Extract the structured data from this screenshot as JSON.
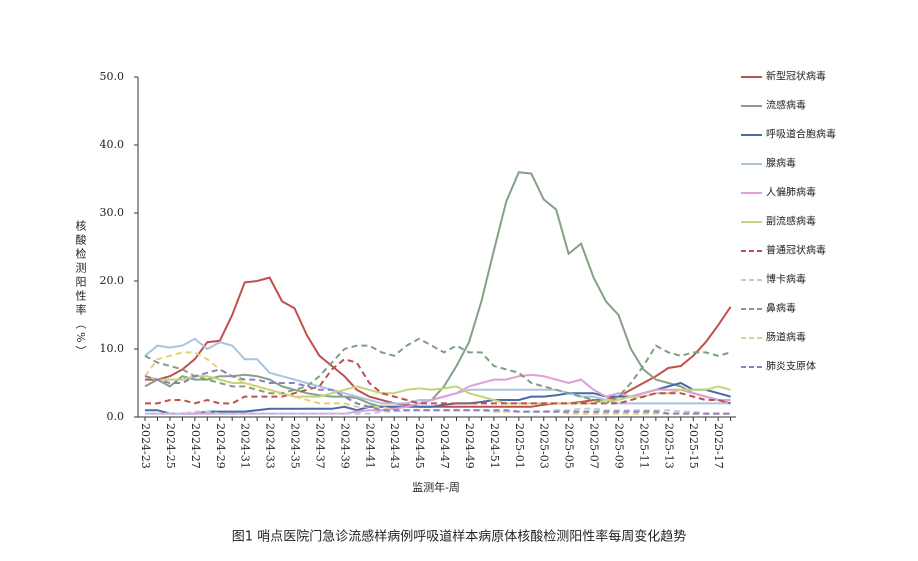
{
  "chart_data": {
    "type": "line",
    "title": "图1 哨点医院门急诊流感样病例呼吸道样本病原体核酸检测阳性率每周变化趋势",
    "x_label": "监测年-周",
    "y_label": "核酸检测阳性率（%）",
    "categories": [
      "2024-23",
      null,
      "2024-25",
      null,
      "2024-27",
      null,
      "2024-29",
      null,
      "2024-31",
      null,
      "2024-33",
      null,
      "2024-35",
      null,
      "2024-37",
      null,
      "2024-39",
      null,
      "2024-41",
      null,
      "2024-43",
      null,
      "2024-45",
      null,
      "2024-47",
      null,
      "2024-49",
      null,
      "2024-51",
      null,
      "2025-01",
      null,
      "2025-03",
      null,
      "2025-05",
      null,
      "2025-07",
      null,
      "2025-09",
      null,
      "2025-11",
      null,
      "2025-13",
      null,
      "2025-15",
      null,
      "2025-17",
      null
    ],
    "ylim": [
      0,
      50
    ],
    "yticks": [
      {
        "value": 0,
        "label": "0.0"
      },
      {
        "value": 10,
        "label": "10.0"
      },
      {
        "value": 20,
        "label": "20.0"
      },
      {
        "value": 30,
        "label": "30.0"
      },
      {
        "value": 40,
        "label": "40.0"
      },
      {
        "value": 50,
        "label": "50.0"
      }
    ],
    "legend": "right",
    "series": [
      {
        "name": "新型冠状病毒",
        "color": "#c0504d",
        "style": "solid",
        "values": [
          5.5,
          5.5,
          6,
          7,
          8.5,
          11,
          11.2,
          15,
          19.8,
          20,
          20.5,
          17,
          16,
          12,
          9,
          7.5,
          6,
          4,
          3,
          2.5,
          2,
          1.8,
          1.5,
          1.5,
          1.5,
          1.5,
          1.5,
          1.5,
          1.5,
          1.5,
          1.5,
          1.5,
          1.8,
          2,
          2,
          2.2,
          2.5,
          2.5,
          3,
          4,
          5,
          6,
          7.2,
          7.5,
          9,
          11,
          13.5,
          16.2
        ]
      },
      {
        "name": "流感病毒",
        "color": "#86a086",
        "style": "solid",
        "values": [
          4.5,
          5.5,
          4.5,
          6,
          5.5,
          5.5,
          6,
          6,
          6.2,
          6,
          5.5,
          4.5,
          4,
          3.5,
          3.2,
          3,
          3,
          2.8,
          2,
          1.5,
          1.5,
          1.5,
          2,
          2.5,
          4.5,
          7.5,
          11,
          17,
          24.5,
          31.7,
          36,
          35.8,
          32,
          30.5,
          24,
          25.5,
          20.5,
          17,
          15,
          10,
          7,
          5.5,
          5,
          4.5,
          3.5,
          3,
          2.5,
          2
        ]
      },
      {
        "name": "呼吸道合胞病毒",
        "color": "#4a6aa5",
        "style": "solid",
        "values": [
          1,
          1,
          0.5,
          0.5,
          0.5,
          0.8,
          0.8,
          0.8,
          0.8,
          1,
          1.2,
          1.2,
          1.2,
          1.2,
          1.2,
          1.2,
          1.5,
          1,
          1.5,
          1.5,
          1.5,
          1.5,
          1.5,
          1.5,
          1.8,
          2,
          2,
          2.2,
          2.5,
          2.5,
          2.5,
          3,
          3,
          3.2,
          3.5,
          3.5,
          3.5,
          3,
          3,
          3,
          3.5,
          4,
          4.5,
          5,
          4,
          4,
          3.5,
          3
        ]
      },
      {
        "name": "腺病毒",
        "color": "#a9c4e0",
        "style": "solid",
        "values": [
          9,
          10.5,
          10.2,
          10.5,
          11.5,
          10,
          11,
          10.5,
          8.5,
          8.5,
          6.5,
          6,
          5.5,
          5,
          4.5,
          4,
          3.5,
          3,
          2.5,
          2,
          2,
          2,
          2.5,
          2.5,
          3,
          3.5,
          4,
          4,
          4,
          4,
          4,
          4,
          4,
          4,
          3.5,
          3,
          3,
          2.5,
          2,
          2,
          2,
          2,
          2,
          2,
          2,
          2,
          2,
          2
        ]
      },
      {
        "name": "人偏肺病毒",
        "color": "#dda0d8",
        "style": "solid",
        "values": [
          0.5,
          0.5,
          0.5,
          0.5,
          0.5,
          0.5,
          0.5,
          0.5,
          0.5,
          0.5,
          0.5,
          0.5,
          0.5,
          0.5,
          0.5,
          0.5,
          0.5,
          0.8,
          1,
          1,
          1.2,
          1.5,
          2,
          2.5,
          3,
          3.5,
          4.5,
          5,
          5.5,
          5.5,
          6,
          6.2,
          6,
          5.5,
          5,
          5.5,
          4,
          3,
          3.5,
          3,
          3.5,
          4,
          4,
          4,
          3.5,
          3,
          2.5,
          2.5
        ]
      },
      {
        "name": "副流感病毒",
        "color": "#c5d37a",
        "style": "solid",
        "values": [
          6,
          5.5,
          5.5,
          5.5,
          6,
          6,
          5.5,
          5,
          5,
          4.5,
          4,
          3.5,
          3,
          3,
          3,
          3.5,
          4,
          4.5,
          4,
          3.5,
          3.5,
          4,
          4.2,
          4,
          4.2,
          4.5,
          3.5,
          3,
          2.5,
          2,
          2,
          2,
          2,
          2,
          2,
          2,
          2,
          2.5,
          2.5,
          3,
          3,
          3.5,
          3.5,
          4,
          4,
          4,
          4.5,
          4
        ]
      },
      {
        "name": "普通冠状病毒",
        "color": "#c0504d",
        "style": "dashed",
        "values": [
          2,
          2,
          2.5,
          2.5,
          2,
          2.5,
          2,
          2,
          3,
          3,
          3,
          3,
          3.5,
          4,
          4.5,
          7,
          8.5,
          8,
          5,
          3.5,
          3,
          2.5,
          2,
          2,
          2,
          2,
          2,
          2,
          2,
          2,
          2,
          2,
          2,
          2,
          2,
          2,
          2,
          2,
          2,
          2.5,
          3,
          3.5,
          3.5,
          3.5,
          3,
          2.5,
          2.5,
          2
        ]
      },
      {
        "name": "博卡病毒",
        "color": "#b7cde2",
        "style": "dashed",
        "values": [
          0.5,
          0.5,
          0.5,
          0.5,
          0.8,
          0.8,
          0.5,
          0.5,
          0.5,
          0.5,
          0.5,
          0.5,
          0.5,
          0.5,
          0.5,
          0.5,
          0.5,
          0.5,
          0.5,
          0.8,
          0.8,
          1,
          1,
          1,
          1,
          1,
          1,
          1,
          0.8,
          0.8,
          0.8,
          0.8,
          0.8,
          1,
          1,
          1.2,
          1.2,
          1,
          1,
          1,
          1,
          1,
          1,
          0.8,
          0.8,
          0.5,
          0.5,
          0.5
        ]
      },
      {
        "name": "鼻病毒",
        "color": "#7fa07f",
        "style": "dashed",
        "values": [
          9,
          8,
          7.5,
          7,
          6,
          5.5,
          5,
          4.5,
          4.5,
          4,
          3.5,
          3.5,
          4,
          4.5,
          6,
          8,
          10,
          10.5,
          10.5,
          9.5,
          9,
          10.5,
          11.5,
          10.5,
          9.5,
          10.5,
          9.5,
          9.5,
          7.5,
          7,
          6.5,
          5,
          4.5,
          4,
          3.5,
          3,
          2.5,
          2,
          3,
          5,
          7.5,
          10.5,
          9.5,
          9,
          9.5,
          9.5,
          9,
          9.5
        ]
      },
      {
        "name": "肠道病毒",
        "color": "#e6cf7a",
        "style": "dashed",
        "values": [
          6,
          8.5,
          9,
          9.5,
          9.5,
          8.5,
          7,
          6,
          5,
          4.5,
          4,
          3.5,
          3,
          2.5,
          2,
          2,
          2,
          1.5,
          1.5,
          1.5,
          1,
          1,
          1,
          1,
          1,
          1,
          1,
          1,
          0.8,
          0.8,
          0.8,
          0.8,
          0.8,
          0.8,
          0.5,
          0.5,
          0.5,
          0.5,
          0.5,
          0.5,
          0.5,
          0.5,
          0.5,
          0.5,
          0.5,
          0.5,
          0.5,
          0.5
        ]
      },
      {
        "name": "肺炎支原体",
        "color": "#8b7fc0",
        "style": "dashed",
        "values": [
          6,
          5.5,
          5,
          5,
          6,
          6.5,
          7,
          6,
          5.5,
          5.5,
          5,
          5,
          5,
          4.5,
          4,
          4,
          3,
          2,
          1.5,
          1,
          1,
          1,
          1,
          1,
          1,
          1,
          1,
          1,
          1,
          1,
          0.8,
          0.8,
          0.8,
          0.8,
          0.8,
          0.8,
          0.8,
          0.8,
          0.8,
          0.8,
          0.8,
          0.8,
          0.5,
          0.5,
          0.5,
          0.5,
          0.5,
          0.5
        ]
      }
    ]
  }
}
